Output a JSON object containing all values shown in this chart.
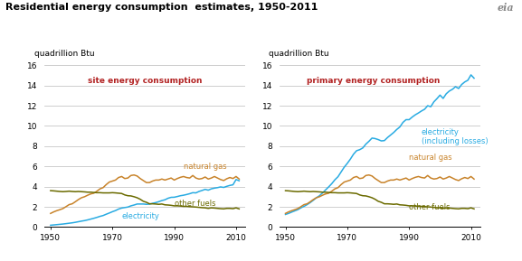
{
  "title": "Residential energy consumption  estimates, 1950-2011",
  "ylabel": "quadrillion Btu",
  "years": [
    1950,
    1951,
    1952,
    1953,
    1954,
    1955,
    1956,
    1957,
    1958,
    1959,
    1960,
    1961,
    1962,
    1963,
    1964,
    1965,
    1966,
    1967,
    1968,
    1969,
    1970,
    1971,
    1972,
    1973,
    1974,
    1975,
    1976,
    1977,
    1978,
    1979,
    1980,
    1981,
    1982,
    1983,
    1984,
    1985,
    1986,
    1987,
    1988,
    1989,
    1990,
    1991,
    1992,
    1993,
    1994,
    1995,
    1996,
    1997,
    1998,
    1999,
    2000,
    2001,
    2002,
    2003,
    2004,
    2005,
    2006,
    2007,
    2008,
    2009,
    2010,
    2011
  ],
  "site_electricity": [
    0.18,
    0.21,
    0.24,
    0.27,
    0.3,
    0.34,
    0.38,
    0.42,
    0.47,
    0.53,
    0.59,
    0.64,
    0.71,
    0.79,
    0.87,
    0.96,
    1.06,
    1.14,
    1.27,
    1.39,
    1.52,
    1.63,
    1.78,
    1.88,
    1.93,
    1.98,
    2.1,
    2.18,
    2.28,
    2.28,
    2.28,
    2.25,
    2.27,
    2.35,
    2.42,
    2.51,
    2.62,
    2.7,
    2.85,
    2.94,
    2.95,
    3.02,
    3.1,
    3.15,
    3.22,
    3.3,
    3.4,
    3.38,
    3.52,
    3.62,
    3.73,
    3.65,
    3.78,
    3.85,
    3.9,
    3.97,
    3.92,
    4.03,
    4.12,
    4.18,
    4.7,
    4.58
  ],
  "site_natural_gas": [
    1.35,
    1.5,
    1.62,
    1.72,
    1.83,
    2.02,
    2.22,
    2.3,
    2.5,
    2.72,
    2.9,
    3.0,
    3.15,
    3.28,
    3.35,
    3.55,
    3.78,
    3.9,
    4.2,
    4.45,
    4.55,
    4.65,
    4.9,
    5.0,
    4.8,
    4.85,
    5.1,
    5.15,
    5.05,
    4.8,
    4.6,
    4.4,
    4.4,
    4.55,
    4.65,
    4.65,
    4.75,
    4.65,
    4.75,
    4.85,
    4.65,
    4.8,
    4.92,
    5.0,
    4.9,
    4.85,
    5.1,
    4.85,
    4.75,
    4.8,
    4.95,
    4.75,
    4.85,
    5.0,
    4.85,
    4.7,
    4.6,
    4.78,
    4.9,
    4.8,
    5.0,
    4.75
  ],
  "site_other_fuels": [
    3.6,
    3.58,
    3.55,
    3.52,
    3.5,
    3.52,
    3.55,
    3.52,
    3.5,
    3.52,
    3.5,
    3.48,
    3.45,
    3.45,
    3.42,
    3.4,
    3.4,
    3.38,
    3.38,
    3.38,
    3.4,
    3.38,
    3.35,
    3.32,
    3.18,
    3.1,
    3.08,
    3.0,
    2.9,
    2.75,
    2.55,
    2.45,
    2.3,
    2.3,
    2.28,
    2.25,
    2.28,
    2.2,
    2.18,
    2.15,
    2.1,
    2.1,
    2.08,
    2.05,
    2.05,
    2.02,
    2.0,
    1.98,
    1.95,
    1.92,
    1.9,
    1.85,
    1.9,
    1.88,
    1.85,
    1.82,
    1.8,
    1.85,
    1.85,
    1.82,
    1.9,
    1.8
  ],
  "primary_electricity": [
    1.25,
    1.35,
    1.48,
    1.6,
    1.72,
    1.9,
    2.05,
    2.22,
    2.42,
    2.65,
    2.9,
    3.1,
    3.38,
    3.68,
    3.98,
    4.3,
    4.68,
    4.98,
    5.45,
    5.92,
    6.3,
    6.72,
    7.2,
    7.55,
    7.65,
    7.82,
    8.2,
    8.48,
    8.8,
    8.75,
    8.65,
    8.52,
    8.55,
    8.85,
    9.1,
    9.35,
    9.65,
    9.9,
    10.35,
    10.62,
    10.62,
    10.88,
    11.1,
    11.28,
    11.48,
    11.65,
    12.0,
    11.9,
    12.38,
    12.7,
    13.05,
    12.72,
    13.18,
    13.45,
    13.62,
    13.88,
    13.7,
    14.1,
    14.35,
    14.52,
    15.05,
    14.72
  ],
  "primary_natural_gas": [
    1.35,
    1.5,
    1.62,
    1.72,
    1.83,
    2.02,
    2.22,
    2.3,
    2.5,
    2.72,
    2.9,
    3.0,
    3.15,
    3.28,
    3.35,
    3.55,
    3.78,
    3.9,
    4.2,
    4.45,
    4.55,
    4.65,
    4.9,
    5.0,
    4.8,
    4.85,
    5.1,
    5.15,
    5.05,
    4.8,
    4.6,
    4.4,
    4.4,
    4.55,
    4.65,
    4.65,
    4.75,
    4.65,
    4.75,
    4.85,
    4.65,
    4.8,
    4.92,
    5.0,
    4.9,
    4.85,
    5.1,
    4.85,
    4.75,
    4.8,
    4.95,
    4.75,
    4.85,
    5.0,
    4.85,
    4.7,
    4.6,
    4.78,
    4.9,
    4.8,
    5.0,
    4.75
  ],
  "primary_other_fuels": [
    3.6,
    3.58,
    3.55,
    3.52,
    3.5,
    3.52,
    3.55,
    3.52,
    3.5,
    3.52,
    3.5,
    3.48,
    3.45,
    3.45,
    3.42,
    3.4,
    3.4,
    3.38,
    3.38,
    3.38,
    3.4,
    3.38,
    3.35,
    3.32,
    3.18,
    3.1,
    3.08,
    3.0,
    2.9,
    2.75,
    2.55,
    2.45,
    2.3,
    2.3,
    2.28,
    2.25,
    2.28,
    2.2,
    2.18,
    2.15,
    2.1,
    2.1,
    2.08,
    2.05,
    2.05,
    2.02,
    2.0,
    1.98,
    1.95,
    1.92,
    1.9,
    1.85,
    1.9,
    1.88,
    1.85,
    1.82,
    1.8,
    1.85,
    1.85,
    1.82,
    1.9,
    1.8
  ],
  "color_electricity": "#29ABE2",
  "color_natural_gas": "#C8832A",
  "color_other_fuels": "#6B6B00",
  "color_label": "#B22222",
  "ylim": [
    0,
    16
  ],
  "yticks": [
    0,
    2,
    4,
    6,
    8,
    10,
    12,
    14,
    16
  ],
  "xticks": [
    1950,
    1970,
    1990,
    2010
  ],
  "xlim": [
    1948,
    2013
  ],
  "left_label": "site energy consumption",
  "right_label": "primary energy consumption",
  "title_fontsize": 8,
  "label_fontsize": 6.5,
  "annotation_fontsize": 6,
  "ylabel_fontsize": 6.5,
  "tick_fontsize": 6.5,
  "line_width": 1.1
}
